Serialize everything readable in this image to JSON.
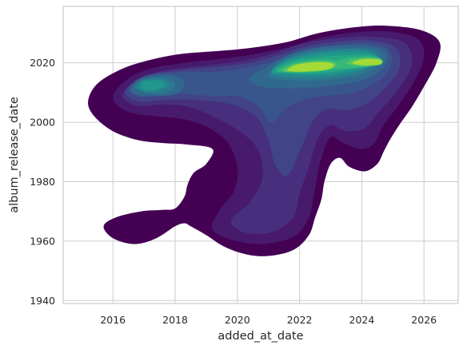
{
  "chart_data": {
    "type": "kde-contour",
    "title": "",
    "xlabel": "added_at_date",
    "ylabel": "album_release_date",
    "xlim": [
      2014.4,
      2027.1
    ],
    "ylim": [
      1939.0,
      2039.0
    ],
    "x_ticks": [
      2016,
      2018,
      2020,
      2022,
      2024,
      2026
    ],
    "y_ticks": [
      1940,
      1960,
      1980,
      2000,
      2020
    ],
    "grid": true,
    "colormap": "viridis",
    "levels": [
      "#440154",
      "#481a6c",
      "#472f7d",
      "#414487",
      "#39568c",
      "#31688e",
      "#2a788e",
      "#23888e",
      "#1f988b",
      "#22a884",
      "#35b779",
      "#54c568",
      "#7ad151",
      "#a5db36"
    ],
    "density_peaks": [
      {
        "added_at_date": 2022.0,
        "album_release_date": 2017.5,
        "relative_density": 1.0
      },
      {
        "added_at_date": 2024.0,
        "album_release_date": 2020.0,
        "relative_density": 0.95
      },
      {
        "added_at_date": 2017.0,
        "album_release_date": 2011.5,
        "relative_density": 0.6
      },
      {
        "added_at_date": 2021.0,
        "album_release_date": 1970.0,
        "relative_density": 0.25
      }
    ]
  }
}
